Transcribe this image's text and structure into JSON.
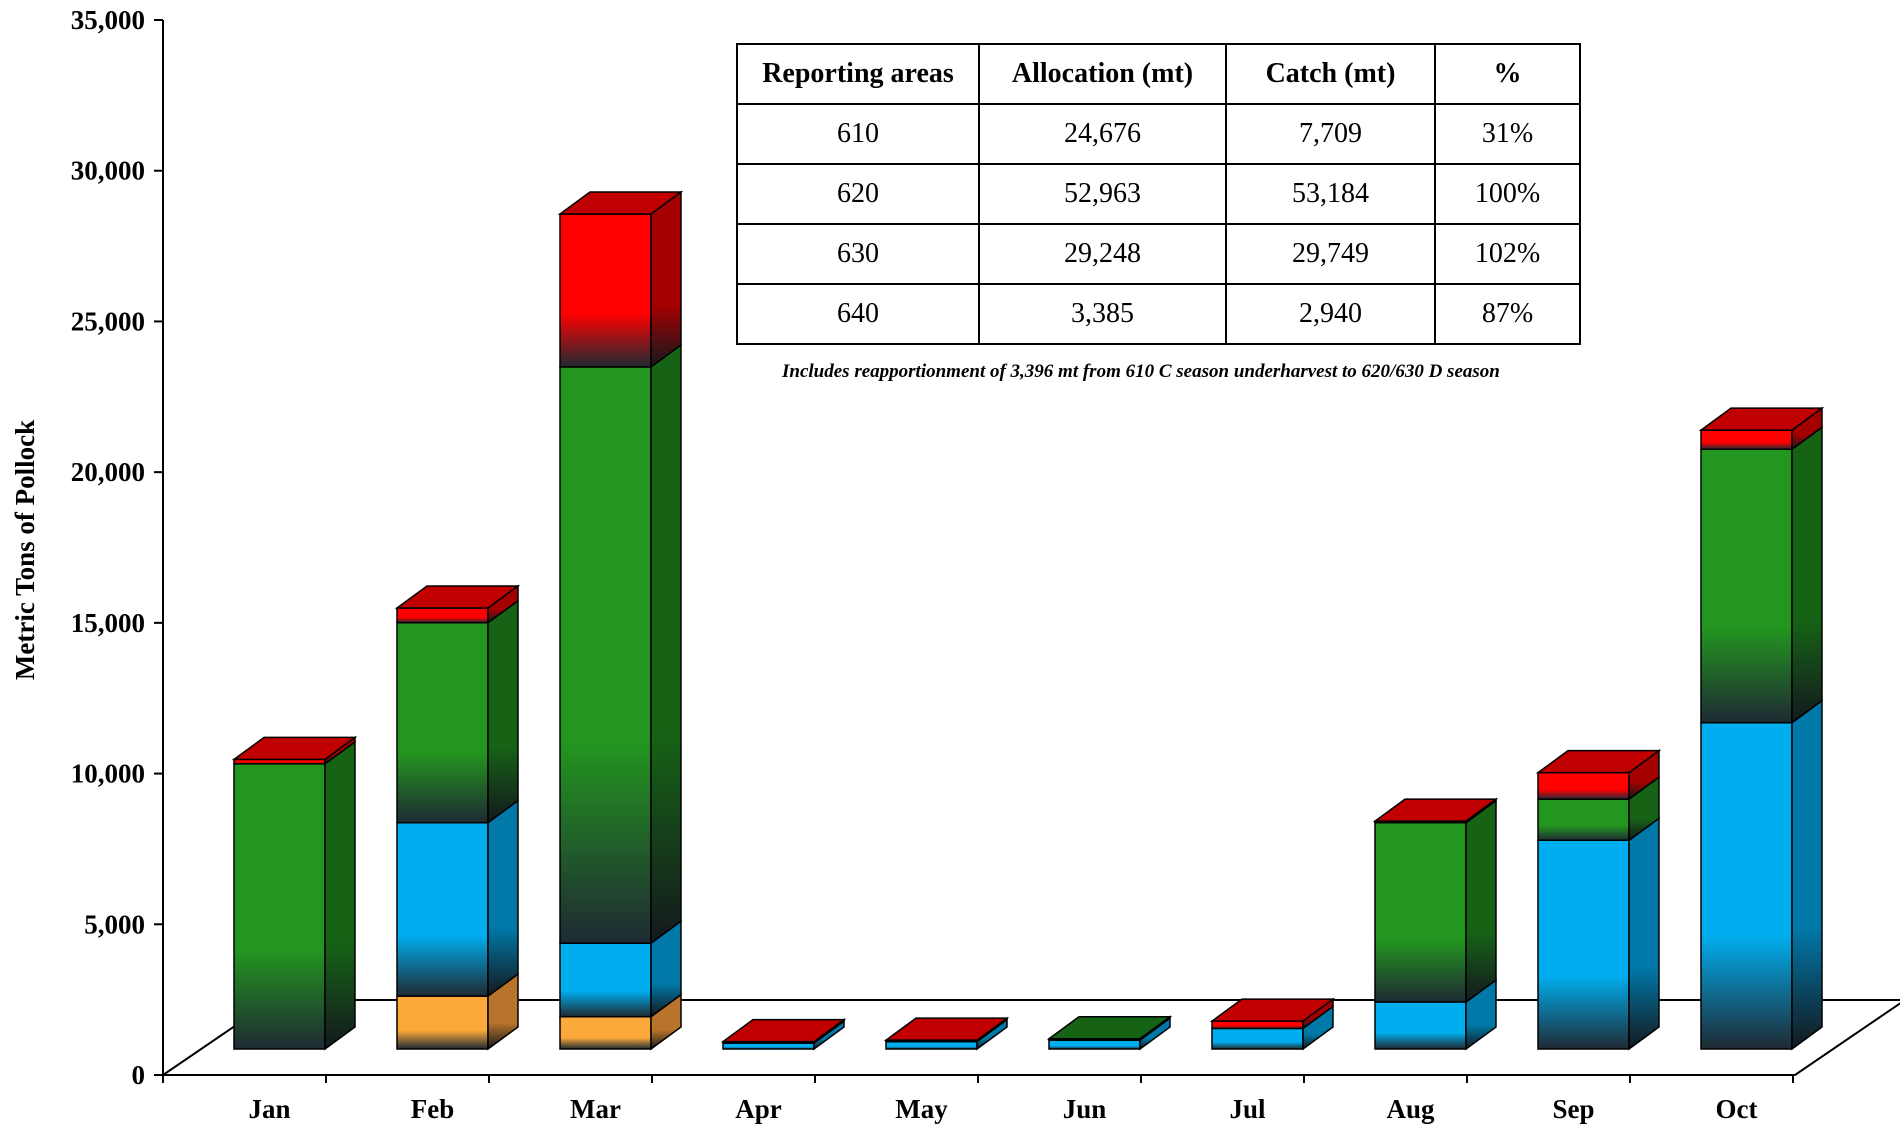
{
  "chart_data": {
    "type": "bar",
    "stacked": true,
    "three_d": true,
    "title": "",
    "ylabel": "Metric Tons of Pollock",
    "xlabel": "",
    "ylim": [
      0,
      35000
    ],
    "yticks": [
      0,
      5000,
      10000,
      15000,
      20000,
      25000,
      30000,
      35000
    ],
    "ytick_labels": [
      "0",
      "5,000",
      "10,000",
      "15,000",
      "20,000",
      "25,000",
      "30,000",
      "35,000"
    ],
    "categories": [
      "Jan",
      "Feb",
      "Mar",
      "Apr",
      "May",
      "Jun",
      "Jul",
      "Aug",
      "Sep",
      "Oct"
    ],
    "series": [
      {
        "values": [
          0,
          1800,
          1100,
          0,
          0,
          0,
          0,
          0,
          0,
          0
        ],
        "color": "#FBA93A",
        "side": "#B8742A"
      },
      {
        "values": [
          0,
          5900,
          2500,
          200,
          250,
          300,
          700,
          1600,
          7100,
          11100
        ],
        "color": "#00AEEF",
        "side": "#0078A8"
      },
      {
        "values": [
          9700,
          6800,
          19600,
          0,
          0,
          50,
          0,
          6100,
          1400,
          9300
        ],
        "color": "#23961F",
        "side": "#166316"
      },
      {
        "values": [
          150,
          500,
          5200,
          50,
          50,
          0,
          250,
          50,
          900,
          650
        ],
        "color": "#FF0000",
        "side": "#A40000"
      }
    ],
    "grid": false,
    "legend": "none"
  },
  "table": {
    "headers": [
      "Reporting areas",
      "Allocation (mt)",
      "Catch (mt)",
      "%"
    ],
    "rows": [
      [
        "610",
        "24,676",
        "7,709",
        "31%"
      ],
      [
        "620",
        "52,963",
        "53,184",
        "100%"
      ],
      [
        "630",
        "29,248",
        "29,749",
        "102%"
      ],
      [
        "640",
        "3,385",
        "2,940",
        "87%"
      ]
    ],
    "note": "Includes reapportionment of 3,396 mt from 610 C season underharvest to 620/630 D season"
  }
}
